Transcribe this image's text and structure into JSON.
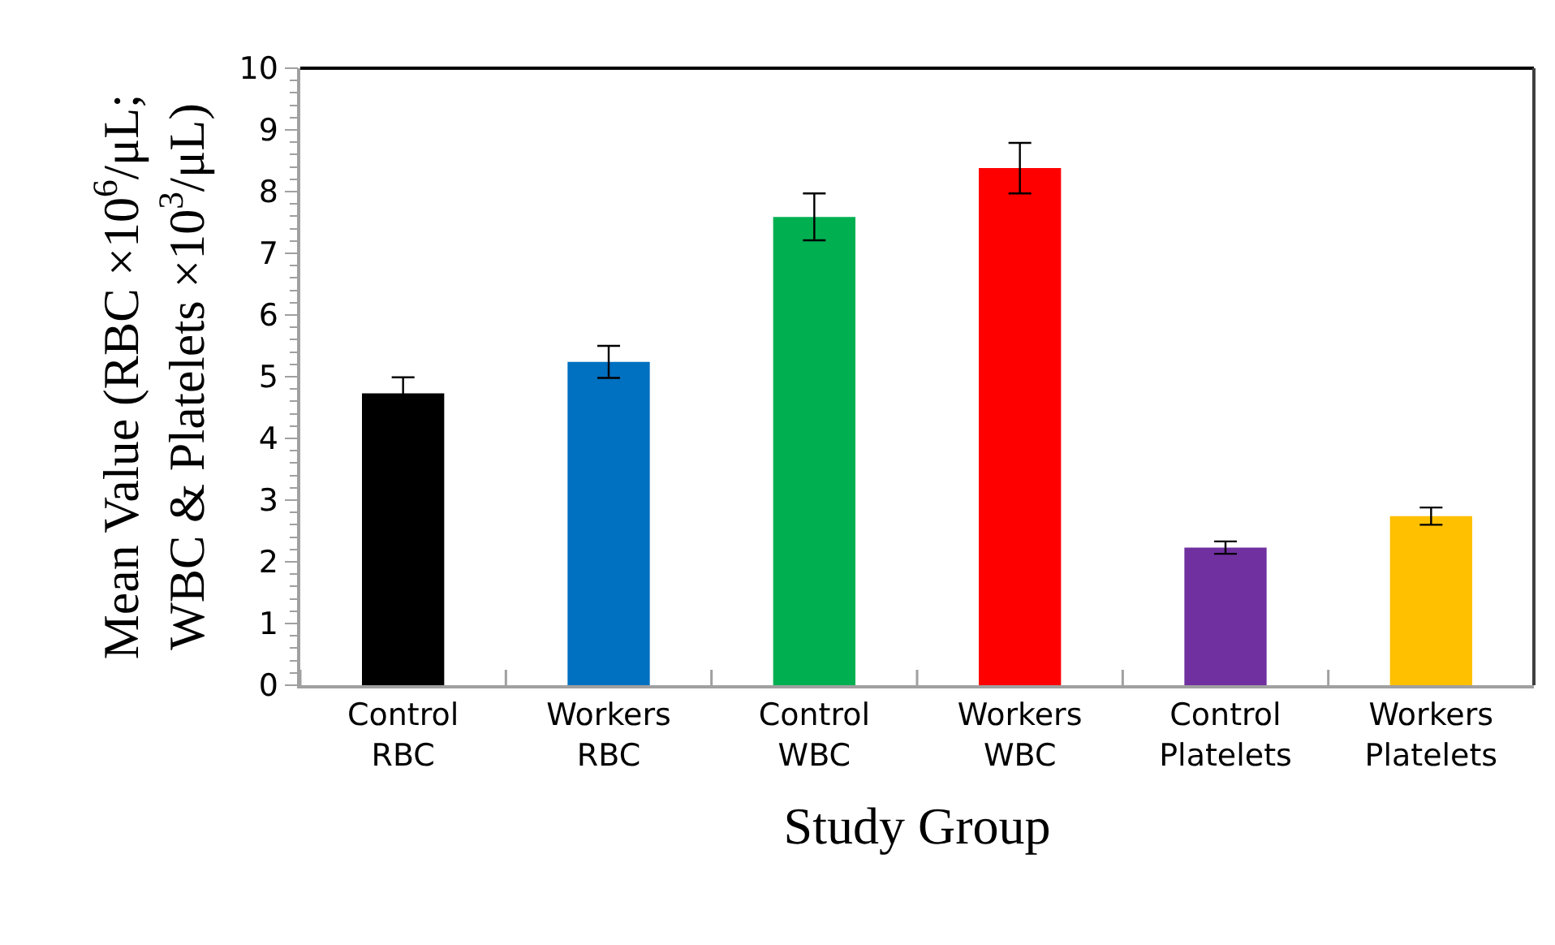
{
  "chart_data": {
    "type": "bar",
    "xlabel": "Study Group",
    "ylabel": "Mean Value (RBC ×10$^{6}$/μL;\nWBC & Platelets ×10$^{3}$/μL)",
    "categories": [
      "Control\nRBC",
      "Workers\nRBC",
      "Control\nWBC",
      "Workers\nWBC",
      "Control\nPlatelets",
      "Workers\nPlatelets"
    ],
    "values": [
      4.73,
      5.24,
      7.59,
      8.38,
      2.23,
      2.74
    ],
    "errors": [
      0.26,
      0.26,
      0.38,
      0.41,
      0.1,
      0.14
    ],
    "colors": [
      "#000000",
      "#0070c0",
      "#00b050",
      "#ff0000",
      "#7030a0",
      "#ffc000"
    ],
    "ylim": [
      0,
      10
    ],
    "yticks": [
      0,
      1,
      2,
      3,
      4,
      5,
      6,
      7,
      8,
      9,
      10
    ]
  }
}
